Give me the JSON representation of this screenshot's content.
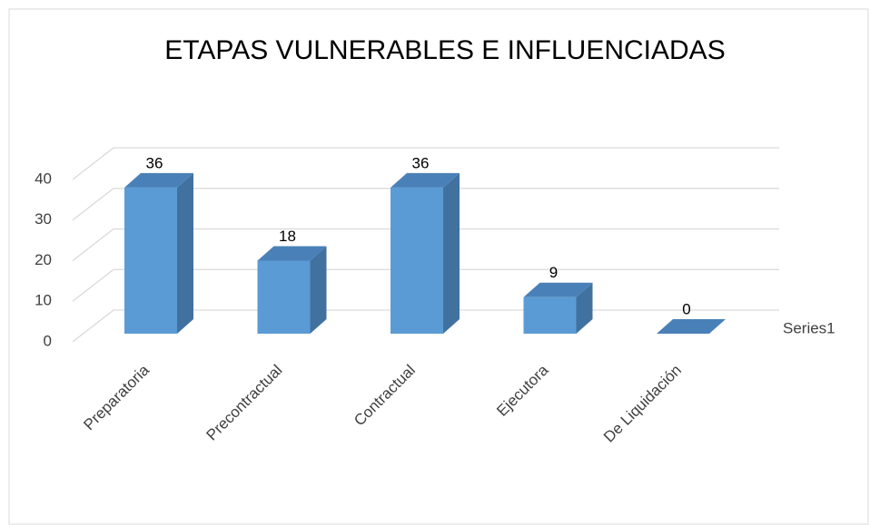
{
  "chart_data": {
    "type": "bar3d",
    "title": "ETAPAS VULNERABLES E INFLUENCIADAS",
    "categories": [
      "Preparatoria",
      "Precontractual",
      "Contractual",
      "Ejecutora",
      "De Liquidación"
    ],
    "series": [
      {
        "name": "Series1",
        "color": "#5b9bd5",
        "values": [
          36,
          18,
          36,
          9,
          0
        ]
      }
    ],
    "ylim": [
      0,
      40
    ],
    "yticks": [
      0,
      10,
      20,
      30,
      40
    ],
    "grid": true,
    "legend": "right"
  }
}
